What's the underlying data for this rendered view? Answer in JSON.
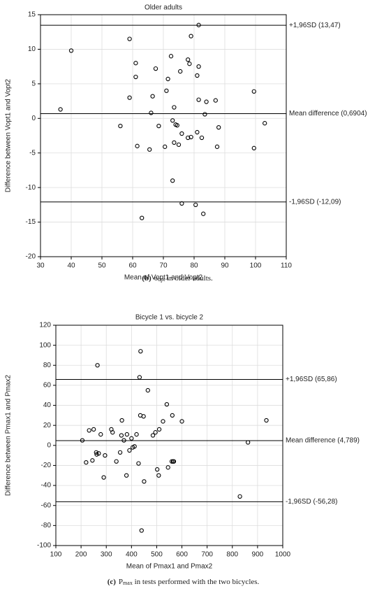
{
  "chart_data": [
    {
      "type": "scatter",
      "title": "Older adults",
      "x_label": "Mean of Vopt1 and Vopt2",
      "y_label": "Difference between Vopt1 and Vopt2",
      "color": "#000000",
      "grid": true,
      "xlim": [
        30,
        110
      ],
      "xticks": [
        30,
        40,
        50,
        60,
        70,
        80,
        90,
        100,
        110
      ],
      "ylim": [
        -20,
        15
      ],
      "yticks": [
        -20,
        -15,
        -10,
        -5,
        0,
        5,
        10,
        15
      ],
      "reference_lines": [
        {
          "value": 13.47,
          "label": "+1,96SD (13,47)"
        },
        {
          "value": 0.6904,
          "label": "Mean difference (0,6904)"
        },
        {
          "value": -12.09,
          "label": "-1,96SD (-12,09)"
        }
      ],
      "x": [
        36.5,
        40,
        56,
        59,
        59,
        61,
        61,
        61.5,
        65.5,
        66,
        66.5,
        67.5,
        68.5,
        70.5,
        71,
        71.5,
        72.5,
        73,
        73,
        73.5,
        73.5,
        74,
        74.5,
        75,
        75.5,
        76,
        76,
        78,
        78,
        78.5,
        79,
        79,
        80.5,
        81,
        81,
        81.5,
        81.5,
        81.5,
        82.5,
        83,
        83.5,
        84,
        63,
        87,
        87.5,
        88,
        99.5,
        99.5,
        103
      ],
      "values": [
        1.3,
        9.8,
        -1.1,
        11.5,
        3.0,
        6.0,
        8.0,
        -4.0,
        -4.5,
        0.8,
        3.2,
        7.2,
        -1.1,
        -4.1,
        4.0,
        5.7,
        9.0,
        -0.3,
        -9.0,
        -3.5,
        1.6,
        -0.9,
        -1.0,
        -3.8,
        6.8,
        -2.2,
        -12.3,
        -2.8,
        8.5,
        7.9,
        11.9,
        -2.7,
        -12.5,
        6.2,
        -2.0,
        7.5,
        2.7,
        13.5,
        -2.8,
        -13.8,
        0.6,
        2.4,
        -14.4,
        2.6,
        -4.1,
        -1.3,
        3.9,
        -4.3,
        -0.7
      ],
      "caption_label": "(b)",
      "caption": [
        "υ",
        "opt",
        " in older adults."
      ]
    },
    {
      "type": "scatter",
      "title": "Bicycle 1 vs. bicycle 2",
      "x_label": "Mean of Pmax1 and Pmax2",
      "y_label": "Difference between Pmax1 and Pmax2",
      "color": "#000000",
      "grid": true,
      "xlim": [
        100,
        1000
      ],
      "xticks": [
        100,
        200,
        300,
        400,
        500,
        600,
        700,
        800,
        900,
        1000
      ],
      "ylim": [
        -100,
        120
      ],
      "yticks": [
        -100,
        -80,
        -60,
        -40,
        -20,
        0,
        20,
        40,
        60,
        80,
        100,
        120
      ],
      "reference_lines": [
        {
          "value": 65.86,
          "label": "+1,96SD (65,86)"
        },
        {
          "value": 4.789,
          "label": "Mean difference (4,789)"
        },
        {
          "value": -56.28,
          "label": "-1,96SD (-56,28)"
        }
      ],
      "x": [
        205,
        220,
        232,
        245,
        250,
        260,
        262,
        265,
        270,
        278,
        290,
        295,
        320,
        325,
        340,
        355,
        360,
        362,
        370,
        380,
        382,
        392,
        400,
        405,
        412,
        420,
        428,
        432,
        435,
        436,
        440,
        448,
        450,
        465,
        485,
        495,
        502,
        508,
        510,
        525,
        540,
        545,
        560,
        562,
        565,
        568,
        600,
        830,
        862,
        935
      ],
      "values": [
        5,
        -17,
        15,
        -15,
        16,
        -7,
        -9,
        80,
        -8,
        11,
        -32,
        -10,
        16,
        13,
        -16,
        -7,
        10,
        25,
        5,
        -30,
        11,
        -5,
        7,
        -2,
        -1,
        11,
        -18,
        68,
        30,
        94,
        -85,
        29,
        -36,
        55,
        10,
        13,
        -24,
        -30,
        16,
        24,
        41,
        -22,
        -16,
        30,
        -16,
        -16,
        24,
        -51,
        3,
        25
      ],
      "caption_label": "(c)",
      "caption": [
        "P",
        "max",
        " in tests performed with the two bicycles."
      ]
    }
  ]
}
